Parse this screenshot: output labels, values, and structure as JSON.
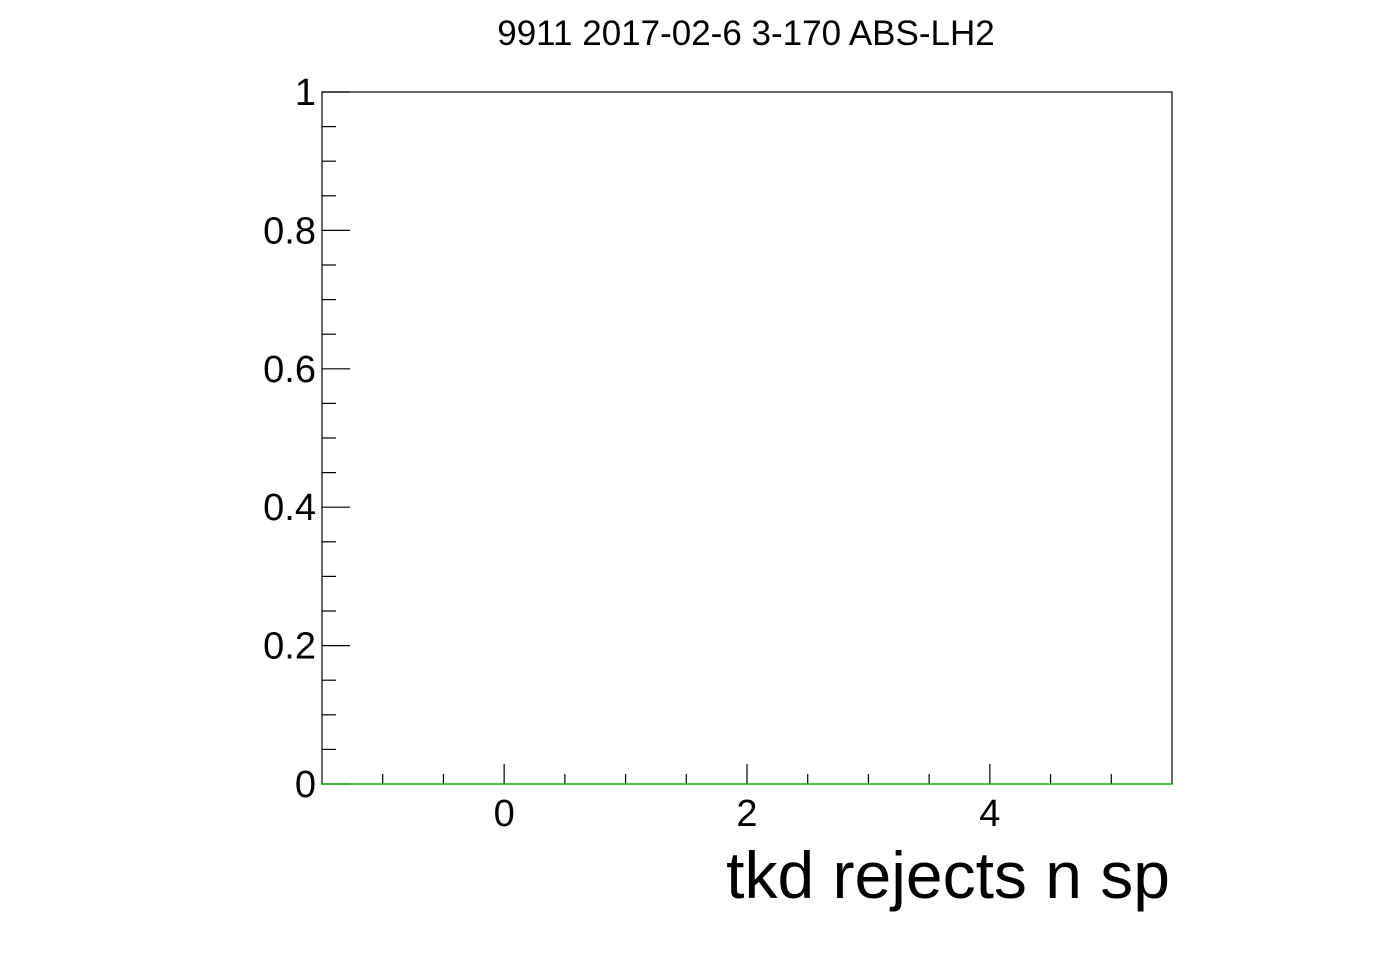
{
  "chart_data": {
    "type": "line",
    "title": "9911 2017-02-6 3-170 ABS-LH2",
    "xlabel": "tkd rejects n sp",
    "ylabel": "",
    "xlim": [
      -1.5,
      5.5
    ],
    "ylim": [
      0,
      1
    ],
    "x_ticks": [
      {
        "value": 0,
        "label": "0"
      },
      {
        "value": 2,
        "label": "2"
      },
      {
        "value": 4,
        "label": "4"
      }
    ],
    "y_ticks": [
      {
        "value": 0,
        "label": "0"
      },
      {
        "value": 0.2,
        "label": "0.2"
      },
      {
        "value": 0.4,
        "label": "0.4"
      },
      {
        "value": 0.6,
        "label": "0.6"
      },
      {
        "value": 0.8,
        "label": "0.8"
      },
      {
        "value": 1,
        "label": "1"
      }
    ],
    "series": [
      {
        "color": "#00cc00",
        "x": [
          -1.5,
          5.5
        ],
        "y": [
          0,
          0
        ]
      }
    ],
    "grid": false,
    "legend": "none"
  }
}
